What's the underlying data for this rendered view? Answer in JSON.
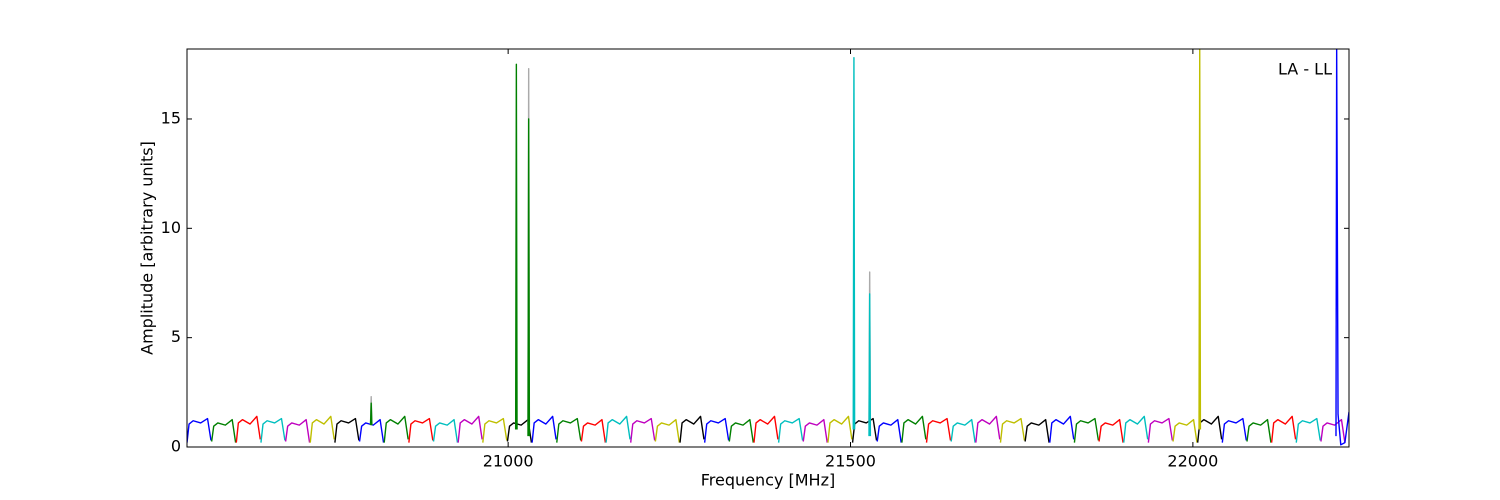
{
  "chart_data": {
    "type": "line",
    "annotation": "LA - LL",
    "x_label": "Frequency [MHz]",
    "y_label": "Amplitude [arbitrary units]",
    "xlim": [
      20531,
      22228
    ],
    "xticks": [
      21000,
      21500,
      22000
    ],
    "ylim": [
      0,
      18.2
    ],
    "yticks": [
      0,
      5,
      10,
      15
    ],
    "grid": false,
    "series": [
      {
        "color": "#0000ff",
        "x": [
          20531,
          20534,
          20540,
          20551,
          20561,
          20566
        ],
        "values": [
          0.2,
          1.05,
          1.2,
          1.1,
          1.3,
          0.3
        ]
      },
      {
        "color": "#008000",
        "x": [
          20567,
          20570,
          20576,
          20587,
          20597,
          20602
        ],
        "values": [
          0.25,
          0.95,
          1.1,
          1.0,
          1.25,
          0.2
        ]
      },
      {
        "color": "#ff0000",
        "x": [
          20603,
          20606,
          20612,
          20623,
          20633,
          20638
        ],
        "values": [
          0.2,
          1.1,
          1.25,
          1.05,
          1.4,
          0.35
        ]
      },
      {
        "color": "#00bfbf",
        "x": [
          20639,
          20642,
          20648,
          20659,
          20669,
          20674
        ],
        "values": [
          0.2,
          1.05,
          1.2,
          1.1,
          1.3,
          0.3
        ]
      },
      {
        "color": "#bf00bf",
        "x": [
          20675,
          20678,
          20684,
          20695,
          20705,
          20710
        ],
        "values": [
          0.25,
          0.95,
          1.1,
          1.0,
          1.25,
          0.2
        ]
      },
      {
        "color": "#bfbf00",
        "x": [
          20711,
          20714,
          20720,
          20731,
          20741,
          20746
        ],
        "values": [
          0.2,
          1.1,
          1.25,
          1.05,
          1.4,
          0.35
        ]
      },
      {
        "color": "#000000",
        "x": [
          20747,
          20750,
          20756,
          20767,
          20777,
          20782
        ],
        "values": [
          0.2,
          1.05,
          1.2,
          1.1,
          1.3,
          0.3
        ]
      },
      {
        "color": "#0000ff",
        "x": [
          20783,
          20786,
          20792,
          20803,
          20813,
          20818
        ],
        "values": [
          0.25,
          0.95,
          1.1,
          1.0,
          1.25,
          0.2
        ]
      },
      {
        "color": "#008000",
        "x": [
          20819,
          20822,
          20828,
          20839,
          20849,
          20854
        ],
        "values": [
          0.2,
          1.1,
          1.25,
          1.05,
          1.4,
          0.35
        ]
      },
      {
        "color": "#ff0000",
        "x": [
          20855,
          20858,
          20864,
          20875,
          20885,
          20890
        ],
        "values": [
          0.2,
          1.05,
          1.2,
          1.1,
          1.3,
          0.3
        ]
      },
      {
        "color": "#00bfbf",
        "x": [
          20891,
          20894,
          20900,
          20911,
          20921,
          20926
        ],
        "values": [
          0.25,
          0.95,
          1.1,
          1.0,
          1.25,
          0.2
        ]
      },
      {
        "color": "#bf00bf",
        "x": [
          20927,
          20930,
          20936,
          20947,
          20957,
          20962
        ],
        "values": [
          0.2,
          1.1,
          1.25,
          1.05,
          1.4,
          0.35
        ]
      },
      {
        "color": "#bfbf00",
        "x": [
          20963,
          20966,
          20972,
          20983,
          20993,
          20998
        ],
        "values": [
          0.2,
          1.05,
          1.2,
          1.1,
          1.3,
          0.3
        ]
      },
      {
        "color": "#000000",
        "x": [
          20999,
          21002,
          21008,
          21019,
          21029,
          21034
        ],
        "values": [
          0.25,
          0.95,
          1.1,
          1.0,
          1.25,
          0.2
        ]
      },
      {
        "color": "#0000ff",
        "x": [
          21035,
          21038,
          21044,
          21055,
          21065,
          21070
        ],
        "values": [
          0.2,
          1.1,
          1.25,
          1.05,
          1.4,
          0.35
        ]
      },
      {
        "color": "#008000",
        "x": [
          21071,
          21074,
          21080,
          21091,
          21101,
          21106
        ],
        "values": [
          0.2,
          1.05,
          1.2,
          1.1,
          1.3,
          0.3
        ]
      },
      {
        "color": "#ff0000",
        "x": [
          21107,
          21110,
          21116,
          21127,
          21137,
          21142
        ],
        "values": [
          0.25,
          0.95,
          1.1,
          1.0,
          1.25,
          0.2
        ]
      },
      {
        "color": "#00bfbf",
        "x": [
          21143,
          21146,
          21152,
          21163,
          21173,
          21178
        ],
        "values": [
          0.2,
          1.1,
          1.25,
          1.05,
          1.4,
          0.35
        ]
      },
      {
        "color": "#bf00bf",
        "x": [
          21179,
          21182,
          21188,
          21199,
          21209,
          21214
        ],
        "values": [
          0.2,
          1.05,
          1.2,
          1.1,
          1.3,
          0.3
        ]
      },
      {
        "color": "#bfbf00",
        "x": [
          21215,
          21218,
          21224,
          21235,
          21245,
          21250
        ],
        "values": [
          0.25,
          0.95,
          1.1,
          1.0,
          1.25,
          0.2
        ]
      },
      {
        "color": "#000000",
        "x": [
          21251,
          21254,
          21260,
          21271,
          21281,
          21286
        ],
        "values": [
          0.2,
          1.1,
          1.25,
          1.05,
          1.4,
          0.35
        ]
      },
      {
        "color": "#0000ff",
        "x": [
          21287,
          21290,
          21296,
          21307,
          21317,
          21322
        ],
        "values": [
          0.2,
          1.05,
          1.2,
          1.1,
          1.3,
          0.3
        ]
      },
      {
        "color": "#008000",
        "x": [
          21323,
          21326,
          21332,
          21343,
          21353,
          21358
        ],
        "values": [
          0.25,
          0.95,
          1.1,
          1.0,
          1.25,
          0.2
        ]
      },
      {
        "color": "#ff0000",
        "x": [
          21359,
          21362,
          21368,
          21379,
          21389,
          21394
        ],
        "values": [
          0.2,
          1.1,
          1.25,
          1.05,
          1.4,
          0.35
        ]
      },
      {
        "color": "#00bfbf",
        "x": [
          21395,
          21398,
          21404,
          21415,
          21425,
          21430
        ],
        "values": [
          0.2,
          1.05,
          1.2,
          1.1,
          1.3,
          0.3
        ]
      },
      {
        "color": "#bf00bf",
        "x": [
          21431,
          21434,
          21440,
          21451,
          21461,
          21466
        ],
        "values": [
          0.25,
          0.95,
          1.1,
          1.0,
          1.25,
          0.2
        ]
      },
      {
        "color": "#bfbf00",
        "x": [
          21467,
          21470,
          21476,
          21487,
          21497,
          21502
        ],
        "values": [
          0.2,
          1.1,
          1.25,
          1.05,
          1.4,
          0.35
        ]
      },
      {
        "color": "#000000",
        "x": [
          21503,
          21506,
          21512,
          21523,
          21533,
          21538
        ],
        "values": [
          0.2,
          1.05,
          1.2,
          1.1,
          1.3,
          0.3
        ]
      },
      {
        "color": "#0000ff",
        "x": [
          21539,
          21542,
          21548,
          21559,
          21569,
          21574
        ],
        "values": [
          0.25,
          0.95,
          1.1,
          1.0,
          1.25,
          0.2
        ]
      },
      {
        "color": "#008000",
        "x": [
          21575,
          21578,
          21584,
          21595,
          21605,
          21610
        ],
        "values": [
          0.2,
          1.1,
          1.25,
          1.05,
          1.4,
          0.35
        ]
      },
      {
        "color": "#ff0000",
        "x": [
          21611,
          21614,
          21620,
          21631,
          21641,
          21646
        ],
        "values": [
          0.2,
          1.05,
          1.2,
          1.1,
          1.3,
          0.3
        ]
      },
      {
        "color": "#00bfbf",
        "x": [
          21647,
          21650,
          21656,
          21667,
          21677,
          21682
        ],
        "values": [
          0.25,
          0.95,
          1.1,
          1.0,
          1.25,
          0.2
        ]
      },
      {
        "color": "#bf00bf",
        "x": [
          21683,
          21686,
          21692,
          21703,
          21713,
          21718
        ],
        "values": [
          0.2,
          1.1,
          1.25,
          1.05,
          1.4,
          0.35
        ]
      },
      {
        "color": "#bfbf00",
        "x": [
          21719,
          21722,
          21728,
          21739,
          21749,
          21754
        ],
        "values": [
          0.2,
          1.05,
          1.2,
          1.1,
          1.3,
          0.3
        ]
      },
      {
        "color": "#000000",
        "x": [
          21755,
          21758,
          21764,
          21775,
          21785,
          21790
        ],
        "values": [
          0.25,
          0.95,
          1.1,
          1.0,
          1.25,
          0.2
        ]
      },
      {
        "color": "#0000ff",
        "x": [
          21791,
          21794,
          21800,
          21811,
          21821,
          21826
        ],
        "values": [
          0.2,
          1.1,
          1.25,
          1.05,
          1.4,
          0.35
        ]
      },
      {
        "color": "#008000",
        "x": [
          21827,
          21830,
          21836,
          21847,
          21857,
          21862
        ],
        "values": [
          0.2,
          1.05,
          1.2,
          1.1,
          1.3,
          0.3
        ]
      },
      {
        "color": "#ff0000",
        "x": [
          21863,
          21866,
          21872,
          21883,
          21893,
          21898
        ],
        "values": [
          0.25,
          0.95,
          1.1,
          1.0,
          1.25,
          0.2
        ]
      },
      {
        "color": "#00bfbf",
        "x": [
          21899,
          21902,
          21908,
          21919,
          21929,
          21934
        ],
        "values": [
          0.2,
          1.1,
          1.25,
          1.05,
          1.4,
          0.35
        ]
      },
      {
        "color": "#bf00bf",
        "x": [
          21935,
          21938,
          21944,
          21955,
          21965,
          21970
        ],
        "values": [
          0.2,
          1.05,
          1.2,
          1.1,
          1.3,
          0.3
        ]
      },
      {
        "color": "#bfbf00",
        "x": [
          21971,
          21974,
          21980,
          21991,
          22001,
          22006
        ],
        "values": [
          0.25,
          0.95,
          1.1,
          1.0,
          1.25,
          0.2
        ]
      },
      {
        "color": "#000000",
        "x": [
          22007,
          22010,
          22016,
          22027,
          22037,
          22042
        ],
        "values": [
          0.2,
          1.1,
          1.25,
          1.05,
          1.4,
          0.35
        ]
      },
      {
        "color": "#0000ff",
        "x": [
          22043,
          22046,
          22052,
          22063,
          22073,
          22078
        ],
        "values": [
          0.2,
          1.05,
          1.2,
          1.1,
          1.3,
          0.3
        ]
      },
      {
        "color": "#008000",
        "x": [
          22079,
          22082,
          22088,
          22099,
          22109,
          22114
        ],
        "values": [
          0.25,
          0.95,
          1.1,
          1.0,
          1.25,
          0.2
        ]
      },
      {
        "color": "#ff0000",
        "x": [
          22115,
          22118,
          22124,
          22135,
          22145,
          22150
        ],
        "values": [
          0.2,
          1.1,
          1.25,
          1.05,
          1.4,
          0.35
        ]
      },
      {
        "color": "#00bfbf",
        "x": [
          22151,
          22154,
          22160,
          22171,
          22181,
          22186
        ],
        "values": [
          0.2,
          1.05,
          1.2,
          1.1,
          1.3,
          0.3
        ]
      },
      {
        "color": "#bf00bf",
        "x": [
          22187,
          22190,
          22196,
          22207,
          22217,
          22222
        ],
        "values": [
          0.25,
          0.95,
          1.1,
          1.0,
          1.25,
          0.2
        ]
      },
      {
        "color": "#aaaaaa",
        "x": [
          21029,
          21030,
          21031
        ],
        "values": [
          1,
          17.3,
          1
        ]
      },
      {
        "color": "#aaaaaa",
        "x": [
          21527,
          21528,
          21529
        ],
        "values": [
          1,
          8,
          1
        ]
      },
      {
        "color": "#aaaaaa",
        "x": [
          20799,
          20800,
          20801
        ],
        "values": [
          1,
          2.3,
          1
        ]
      },
      {
        "color": "#008000",
        "x": [
          20799,
          20800,
          20801
        ],
        "values": [
          1,
          2,
          1
        ]
      },
      {
        "color": "#008000",
        "x": [
          21011,
          21012,
          21013
        ],
        "values": [
          0.8,
          17.5,
          0.8
        ]
      },
      {
        "color": "#008000",
        "x": [
          21029,
          21030,
          21031
        ],
        "values": [
          0.5,
          15,
          0.5
        ]
      },
      {
        "color": "#00bfbf",
        "x": [
          21504,
          21505,
          21506
        ],
        "values": [
          0.8,
          17.8,
          0.8
        ]
      },
      {
        "color": "#00bfbf",
        "x": [
          21527,
          21528,
          21529
        ],
        "values": [
          0.5,
          7,
          0.5
        ]
      },
      {
        "color": "#bfbf00",
        "x": [
          22009,
          22010,
          22011
        ],
        "values": [
          0.8,
          18.2,
          0.8
        ]
      },
      {
        "color": "#0000ff",
        "x": [
          22209,
          22210,
          22212,
          22216,
          22222,
          22228
        ],
        "values": [
          0.5,
          18.2,
          1.5,
          0.1,
          0.2,
          1.6
        ]
      }
    ]
  }
}
